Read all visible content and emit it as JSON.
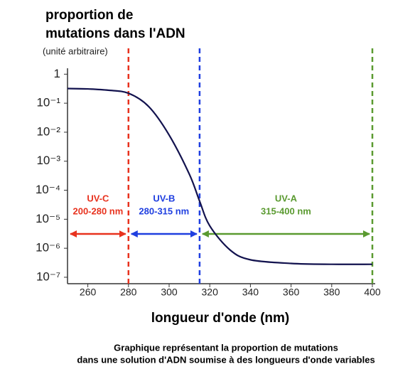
{
  "chart_data": {
    "type": "line",
    "title_line1": "proportion de",
    "title_line2": "mutations dans l'ADN",
    "unit_note": "(unité arbitraire)",
    "x_label": "longueur d'onde (nm)",
    "caption_line1": "Graphique représentant la proportion de mutations",
    "caption_line2": "dans une solution d'ADN soumise à des longueurs d'onde variables",
    "x": [
      250,
      260,
      270,
      280,
      290,
      300,
      310,
      315,
      320,
      330,
      340,
      360,
      380,
      400
    ],
    "series": [
      {
        "color": "#12124e",
        "values": [
          0.32,
          0.31,
          0.28,
          0.22,
          0.076,
          0.008,
          0.00035,
          4.2e-05,
          5.9e-06,
          8.7e-07,
          4e-07,
          3e-07,
          2.8e-07,
          2.8e-07
        ]
      }
    ],
    "xlim": [
      250,
      400
    ],
    "xticks": [
      260,
      280,
      300,
      320,
      340,
      360,
      380,
      400
    ],
    "ylim": [
      6e-08,
      1.6
    ],
    "log_y": true,
    "yticks": [
      {
        "value": 1,
        "label": "1"
      },
      {
        "value": 0.1,
        "label": "10⁻¹"
      },
      {
        "value": 0.01,
        "label": "10⁻²"
      },
      {
        "value": 0.001,
        "label": "10⁻³"
      },
      {
        "value": 0.0001,
        "label": "10⁻⁴"
      },
      {
        "value": 1e-05,
        "label": "10⁻⁵"
      },
      {
        "value": 1e-06,
        "label": "10⁻⁶"
      },
      {
        "value": 1e-07,
        "label": "10⁻⁷"
      }
    ],
    "regions": [
      {
        "name": "UV-C",
        "range": "200-280 nm",
        "end": 280,
        "color": "#e8321e"
      },
      {
        "name": "UV-B",
        "range": "280-315 nm",
        "end": 315,
        "color": "#1f3fe0"
      },
      {
        "name": "UV-A",
        "range": "315-400 nm",
        "end": 400,
        "color": "#5a9a30"
      }
    ]
  }
}
